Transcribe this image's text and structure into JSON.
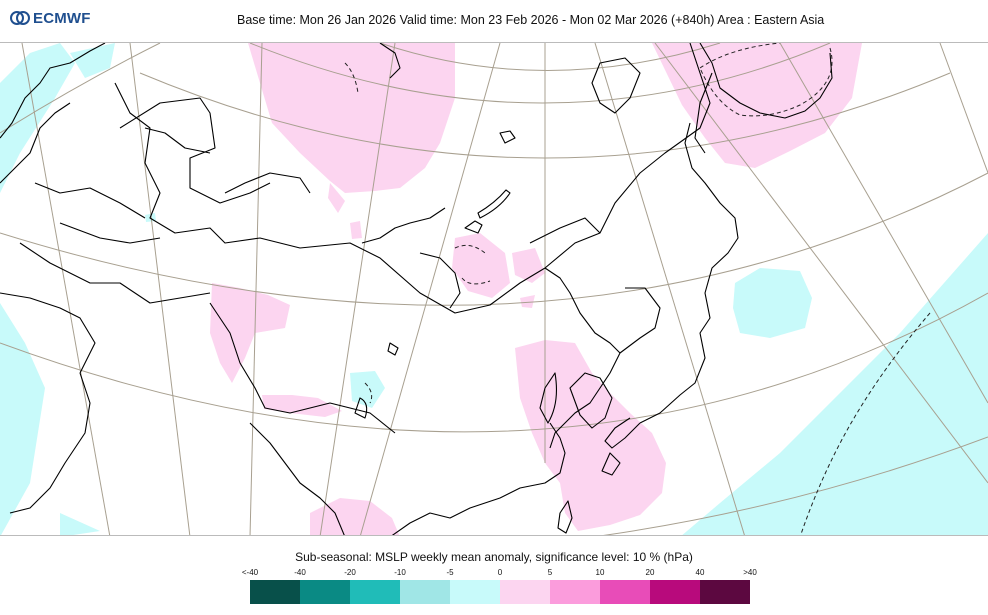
{
  "header": {
    "logo_text": "ECMWF",
    "title": "Base time: Mon 26 Jan 2026 Valid time: Mon 23 Feb 2026 - Mon 02 Mar 2026 (+840h) Area : Eastern Asia"
  },
  "map": {
    "colors": {
      "ocean": "#ffffff",
      "land": "#ffffff",
      "coastline": "#000000",
      "graticule": "#a8a090",
      "negative_anomaly": "#c8fafa",
      "positive_anomaly": "#fcd5f0"
    }
  },
  "legend": {
    "title": "Sub-seasonal: MSLP weekly mean anomaly, significance level: 10 % (hPa)",
    "ticks": [
      "<-40",
      "-40",
      "-20",
      "-10",
      "-5",
      "0",
      "5",
      "10",
      "20",
      "40",
      ">40"
    ],
    "colors": [
      "#08504a",
      "#0a8a84",
      "#20bcb8",
      "#a0e6e6",
      "#c8fafa",
      "#fcd5f0",
      "#fb9cdc",
      "#e84cb8",
      "#b80a7c",
      "#5c0840"
    ]
  }
}
